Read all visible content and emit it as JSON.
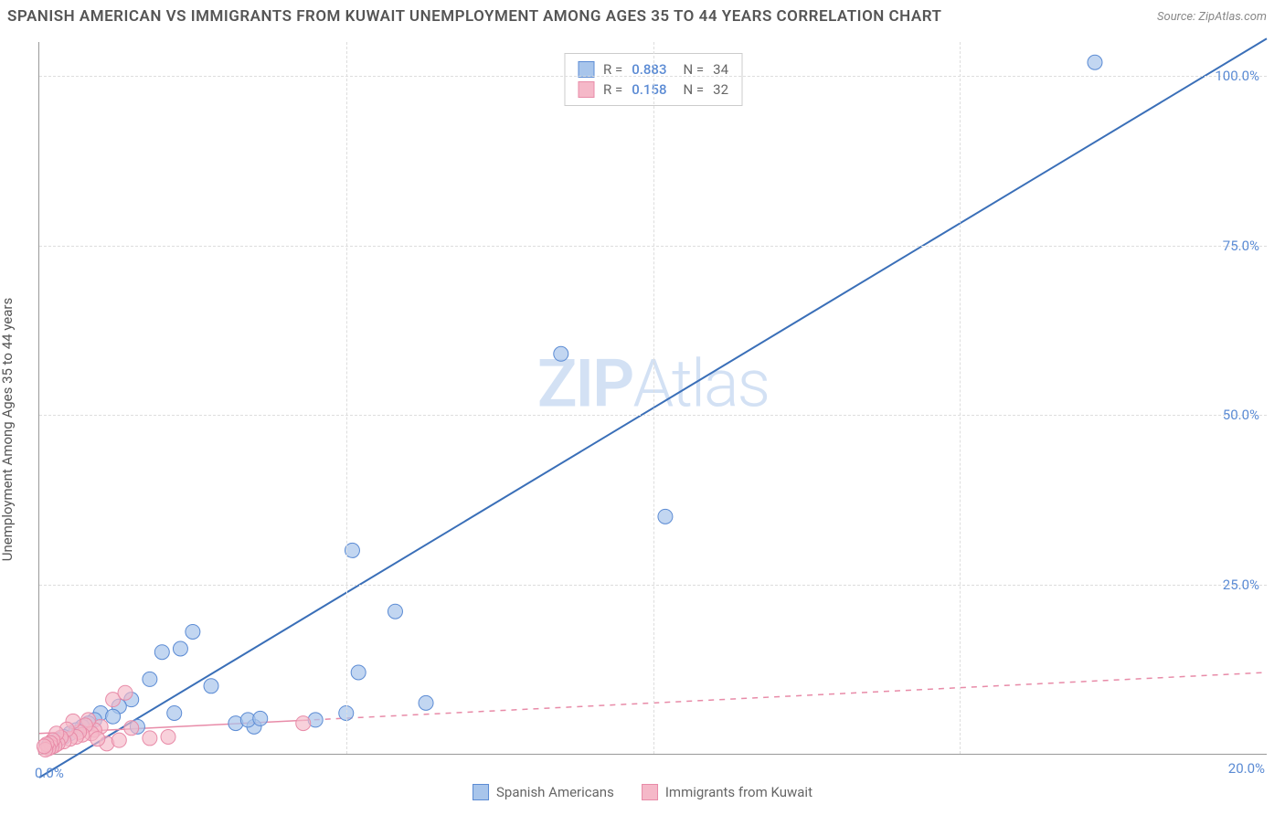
{
  "title": "SPANISH AMERICAN VS IMMIGRANTS FROM KUWAIT UNEMPLOYMENT AMONG AGES 35 TO 44 YEARS CORRELATION CHART",
  "source": "Source: ZipAtlas.com",
  "watermark_1": "ZIP",
  "watermark_2": "Atlas",
  "y_axis_label": "Unemployment Among Ages 35 to 44 years",
  "chart": {
    "type": "scatter",
    "xlim": [
      0,
      20
    ],
    "ylim": [
      0,
      105
    ],
    "x_ticks": [
      0,
      20
    ],
    "y_ticks": [
      25,
      50,
      75,
      100
    ],
    "x_tick_labels": {
      "0": "0.0%",
      "20": "20.0%"
    },
    "y_tick_labels": {
      "25": "25.0%",
      "50": "50.0%",
      "75": "75.0%",
      "100": "100.0%"
    },
    "grid_color": "#dddddd",
    "background_color": "#ffffff",
    "axis_color": "#999999",
    "tick_label_color": "#5b8bd4",
    "series": [
      {
        "name": "Spanish Americans",
        "color_fill": "#a8c5eb",
        "color_stroke": "#5b8bd4",
        "marker_radius": 8,
        "marker_opacity": 0.7,
        "regression": {
          "slope": 5.45,
          "intercept": -3.5,
          "dashed": false,
          "line_color": "#3a6fb8",
          "line_width": 2
        },
        "stats": {
          "R_label": "R =",
          "R": "0.883",
          "N_label": "N =",
          "N": "34"
        },
        "points": [
          {
            "x": 17.2,
            "y": 102
          },
          {
            "x": 10.2,
            "y": 35
          },
          {
            "x": 8.5,
            "y": 59
          },
          {
            "x": 5.1,
            "y": 30
          },
          {
            "x": 5.8,
            "y": 21
          },
          {
            "x": 5.2,
            "y": 12
          },
          {
            "x": 6.3,
            "y": 7.5
          },
          {
            "x": 5.0,
            "y": 6
          },
          {
            "x": 4.5,
            "y": 5
          },
          {
            "x": 3.5,
            "y": 4
          },
          {
            "x": 3.2,
            "y": 4.5
          },
          {
            "x": 2.5,
            "y": 18
          },
          {
            "x": 2.0,
            "y": 15
          },
          {
            "x": 2.3,
            "y": 15.5
          },
          {
            "x": 1.8,
            "y": 11
          },
          {
            "x": 2.8,
            "y": 10
          },
          {
            "x": 1.5,
            "y": 8
          },
          {
            "x": 1.3,
            "y": 7
          },
          {
            "x": 1.0,
            "y": 6
          },
          {
            "x": 0.9,
            "y": 5
          },
          {
            "x": 0.8,
            "y": 4.5
          },
          {
            "x": 0.7,
            "y": 4
          },
          {
            "x": 0.6,
            "y": 3.5
          },
          {
            "x": 0.5,
            "y": 3
          },
          {
            "x": 0.4,
            "y": 2.5
          },
          {
            "x": 0.3,
            "y": 2
          },
          {
            "x": 0.25,
            "y": 1.8
          },
          {
            "x": 0.2,
            "y": 1.5
          },
          {
            "x": 0.15,
            "y": 1.2
          },
          {
            "x": 1.2,
            "y": 5.5
          },
          {
            "x": 3.4,
            "y": 5
          },
          {
            "x": 3.6,
            "y": 5.2
          },
          {
            "x": 1.6,
            "y": 4
          },
          {
            "x": 2.2,
            "y": 6
          }
        ]
      },
      {
        "name": "Immigrants from Kuwait",
        "color_fill": "#f5b8c8",
        "color_stroke": "#e88ba8",
        "marker_radius": 8,
        "marker_opacity": 0.65,
        "regression": {
          "slope": 0.45,
          "intercept": 3.0,
          "dashed_after_x": 4.3,
          "line_color": "#e88ba8",
          "line_width": 1.5
        },
        "stats": {
          "R_label": "R =",
          "R": "0.158",
          "N_label": "N =",
          "N": "32"
        },
        "points": [
          {
            "x": 4.3,
            "y": 4.5
          },
          {
            "x": 2.1,
            "y": 2.5
          },
          {
            "x": 1.8,
            "y": 2.3
          },
          {
            "x": 1.5,
            "y": 3.8
          },
          {
            "x": 1.2,
            "y": 8
          },
          {
            "x": 1.4,
            "y": 9
          },
          {
            "x": 1.0,
            "y": 4
          },
          {
            "x": 0.9,
            "y": 3.5
          },
          {
            "x": 0.85,
            "y": 3
          },
          {
            "x": 0.8,
            "y": 5
          },
          {
            "x": 0.75,
            "y": 4.2
          },
          {
            "x": 0.7,
            "y": 2.8
          },
          {
            "x": 0.65,
            "y": 3.2
          },
          {
            "x": 0.6,
            "y": 2.5
          },
          {
            "x": 0.55,
            "y": 4.8
          },
          {
            "x": 0.5,
            "y": 2.2
          },
          {
            "x": 0.45,
            "y": 3.6
          },
          {
            "x": 0.4,
            "y": 1.8
          },
          {
            "x": 0.35,
            "y": 2.4
          },
          {
            "x": 0.3,
            "y": 1.5
          },
          {
            "x": 0.28,
            "y": 3.0
          },
          {
            "x": 0.25,
            "y": 1.2
          },
          {
            "x": 0.22,
            "y": 2.0
          },
          {
            "x": 0.2,
            "y": 1.0
          },
          {
            "x": 0.18,
            "y": 1.6
          },
          {
            "x": 0.15,
            "y": 0.8
          },
          {
            "x": 0.12,
            "y": 1.4
          },
          {
            "x": 0.1,
            "y": 0.6
          },
          {
            "x": 0.08,
            "y": 1.1
          },
          {
            "x": 1.1,
            "y": 1.5
          },
          {
            "x": 1.3,
            "y": 2
          },
          {
            "x": 0.95,
            "y": 2.2
          }
        ]
      }
    ]
  },
  "legend": {
    "series1_label": "Spanish Americans",
    "series2_label": "Immigrants from Kuwait"
  }
}
